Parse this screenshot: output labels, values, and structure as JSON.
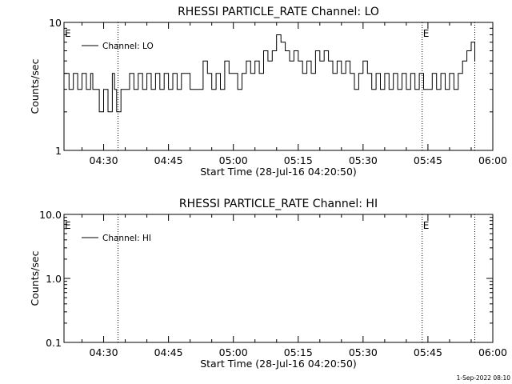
{
  "footer": {
    "timestamp": "1-Sep-2022 08:10"
  },
  "chart_data": [
    {
      "type": "line",
      "title": "RHESSI PARTICLE_RATE Channel: LO",
      "xlabel": "Start Time (28-Jul-16 04:20:50)",
      "ylabel": "Counts/sec",
      "y_scale": "log",
      "ylim": [
        1,
        10
      ],
      "yticks": [
        "1",
        "10"
      ],
      "xlim": [
        "04:20:50",
        "06:00"
      ],
      "xticks": [
        "04:30",
        "04:45",
        "05:00",
        "05:15",
        "05:30",
        "05:45",
        "06:00"
      ],
      "grid": false,
      "legend": {
        "position": "top-left",
        "entries": [
          "Channel: LO"
        ]
      },
      "event_markers": [
        {
          "time": "04:20:50",
          "label": "E",
          "line": false
        },
        {
          "time": "04:33:20",
          "label": "",
          "line": true
        },
        {
          "time": "05:43:40",
          "label": "E",
          "line": true
        },
        {
          "time": "05:55:50",
          "label": "",
          "line": true
        }
      ],
      "series": [
        {
          "name": "Channel: LO",
          "x": [
            "04:20:50",
            "04:22:00",
            "04:23:00",
            "04:24:00",
            "04:25:00",
            "04:26:00",
            "04:27:00",
            "04:27:30",
            "04:28:00",
            "04:29:00",
            "04:30:00",
            "04:31:00",
            "04:32:00",
            "04:32:30",
            "04:33:00",
            "04:34:00",
            "04:35:00",
            "04:36:00",
            "04:37:00",
            "04:38:00",
            "04:39:00",
            "04:40:00",
            "04:41:00",
            "04:42:00",
            "04:43:00",
            "04:44:00",
            "04:45:00",
            "04:46:00",
            "04:47:00",
            "04:48:00",
            "04:50:00",
            "04:52:00",
            "04:53:00",
            "04:54:00",
            "04:55:00",
            "04:56:00",
            "04:57:00",
            "04:58:00",
            "04:59:00",
            "05:00:00",
            "05:01:00",
            "05:02:00",
            "05:03:00",
            "05:04:00",
            "05:05:00",
            "05:06:00",
            "05:07:00",
            "05:08:00",
            "05:09:00",
            "05:10:00",
            "05:11:00",
            "05:12:00",
            "05:13:00",
            "05:14:00",
            "05:15:00",
            "05:16:00",
            "05:17:00",
            "05:18:00",
            "05:19:00",
            "05:20:00",
            "05:21:00",
            "05:22:00",
            "05:23:00",
            "05:24:00",
            "05:25:00",
            "05:26:00",
            "05:27:00",
            "05:28:00",
            "05:29:00",
            "05:30:00",
            "05:31:00",
            "05:32:00",
            "05:33:00",
            "05:34:00",
            "05:35:00",
            "05:36:00",
            "05:37:00",
            "05:38:00",
            "05:39:00",
            "05:40:00",
            "05:41:00",
            "05:42:00",
            "05:43:00",
            "05:44:00",
            "05:45:00",
            "05:46:00",
            "05:47:00",
            "05:48:00",
            "05:49:00",
            "05:50:00",
            "05:51:00",
            "05:52:00",
            "05:53:00",
            "05:54:00",
            "05:55:00",
            "05:55:50"
          ],
          "values": [
            4,
            3,
            4,
            3,
            4,
            3,
            4,
            3,
            3,
            2,
            3,
            2,
            4,
            3,
            2,
            3,
            3,
            4,
            3,
            4,
            3,
            4,
            3,
            4,
            3,
            4,
            3,
            4,
            3,
            4,
            3,
            3,
            5,
            4,
            3,
            4,
            3,
            5,
            4,
            4,
            3,
            4,
            5,
            4,
            5,
            4,
            6,
            5,
            6,
            8,
            7,
            6,
            5,
            6,
            5,
            4,
            5,
            4,
            6,
            5,
            6,
            5,
            4,
            5,
            4,
            5,
            4,
            3,
            4,
            5,
            4,
            3,
            4,
            3,
            4,
            3,
            4,
            3,
            4,
            3,
            4,
            3,
            4,
            3,
            3,
            4,
            3,
            4,
            3,
            4,
            3,
            4,
            5,
            6,
            7,
            5
          ]
        }
      ]
    },
    {
      "type": "line",
      "title": "RHESSI PARTICLE_RATE Channel: HI",
      "xlabel": "Start Time (28-Jul-16 04:20:50)",
      "ylabel": "Counts/sec",
      "y_scale": "log",
      "ylim": [
        0.1,
        10
      ],
      "yticks": [
        "0.1",
        "1.0",
        "10.0"
      ],
      "xlim": [
        "04:20:50",
        "06:00"
      ],
      "xticks": [
        "04:30",
        "04:45",
        "05:00",
        "05:15",
        "05:30",
        "05:45",
        "06:00"
      ],
      "grid": false,
      "legend": {
        "position": "top-left",
        "entries": [
          "Channel: HI"
        ]
      },
      "event_markers": [
        {
          "time": "04:20:50",
          "label": "E",
          "line": false
        },
        {
          "time": "04:33:20",
          "label": "",
          "line": true
        },
        {
          "time": "05:43:40",
          "label": "E",
          "line": true
        },
        {
          "time": "05:55:50",
          "label": "",
          "line": true
        }
      ],
      "series": [
        {
          "name": "Channel: HI",
          "x": [],
          "values": []
        }
      ]
    }
  ]
}
